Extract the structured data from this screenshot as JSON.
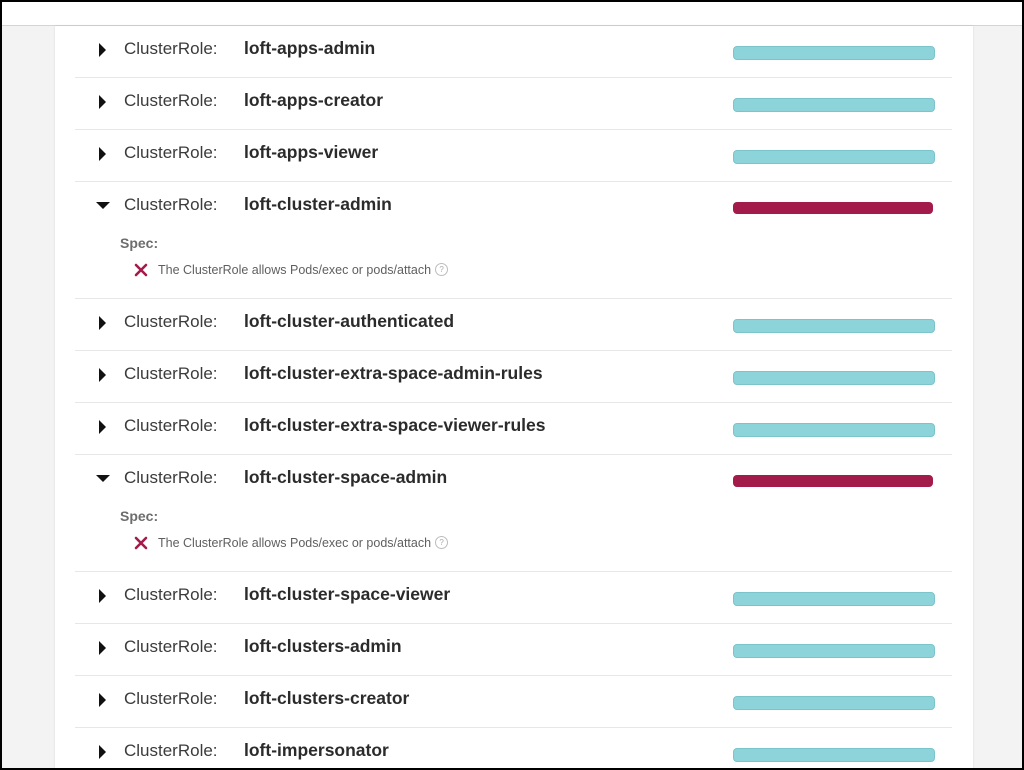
{
  "colors": {
    "pass": "#8dd3da",
    "fail": "#a31b4b"
  },
  "kind_label": "ClusterRole:",
  "spec_label": "Spec:",
  "roles": [
    {
      "name": "loft-apps-admin",
      "status": "pass",
      "expanded": false
    },
    {
      "name": "loft-apps-creator",
      "status": "pass",
      "expanded": false
    },
    {
      "name": "loft-apps-viewer",
      "status": "pass",
      "expanded": false
    },
    {
      "name": "loft-cluster-admin",
      "status": "fail",
      "expanded": true,
      "spec_items": [
        {
          "icon": "x-icon",
          "text": "The ClusterRole allows Pods/exec or pods/attach",
          "help_icon": "help-circle-icon",
          "help_glyph": "?"
        }
      ]
    },
    {
      "name": "loft-cluster-authenticated",
      "status": "pass",
      "expanded": false
    },
    {
      "name": "loft-cluster-extra-space-admin-rules",
      "status": "pass",
      "expanded": false
    },
    {
      "name": "loft-cluster-extra-space-viewer-rules",
      "status": "pass",
      "expanded": false
    },
    {
      "name": "loft-cluster-space-admin",
      "status": "fail",
      "expanded": true,
      "spec_items": [
        {
          "icon": "x-icon",
          "text": "The ClusterRole allows Pods/exec or pods/attach",
          "help_icon": "help-circle-icon",
          "help_glyph": "?"
        }
      ]
    },
    {
      "name": "loft-cluster-space-viewer",
      "status": "pass",
      "expanded": false
    },
    {
      "name": "loft-clusters-admin",
      "status": "pass",
      "expanded": false
    },
    {
      "name": "loft-clusters-creator",
      "status": "pass",
      "expanded": false
    },
    {
      "name": "loft-impersonator",
      "status": "pass",
      "expanded": false
    }
  ]
}
